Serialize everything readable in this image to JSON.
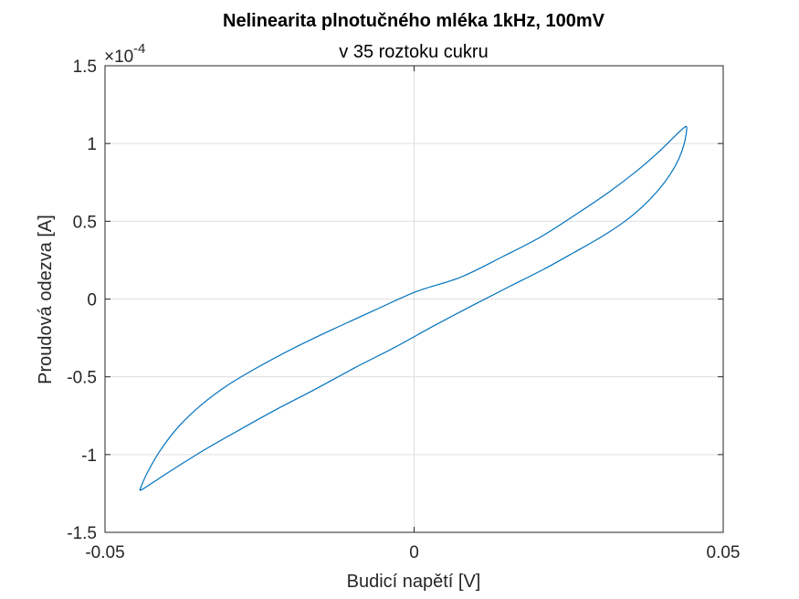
{
  "chart_data": {
    "type": "line",
    "title": "Nelinearita plnotučného mléka 1kHz, 100mV",
    "subtitle": "v 35 roztoku cukru",
    "xlabel": "Budicí napětí [V]",
    "ylabel": "Proudová odezva [A]",
    "xlim": [
      -0.05,
      0.05
    ],
    "ylim": [
      -1.5,
      1.5
    ],
    "y_exponent_label": "×10",
    "y_exponent_power": "-4",
    "y_scale_note": "y values in units of 1e-4 A",
    "x_ticks": [
      -0.05,
      0,
      0.05
    ],
    "x_tick_labels": [
      "-0.05",
      "0",
      "0.05"
    ],
    "y_ticks": [
      -1.5,
      -1,
      -0.5,
      0,
      0.5,
      1,
      1.5
    ],
    "y_tick_labels": [
      "-1.5",
      "-1",
      "-0.5",
      "0",
      "0.5",
      "1",
      "1.5"
    ],
    "grid": true,
    "line_color": "#0072BD",
    "series": [
      {
        "x": [
          -0.0444,
          -0.0438,
          -0.0415,
          -0.038,
          -0.0335,
          -0.0282,
          -0.0223,
          -0.016,
          -0.0095,
          -0.0031,
          0.0033,
          0.0095,
          0.0154,
          0.0209,
          0.0259,
          0.0303,
          0.0341,
          0.0371,
          0.0395,
          0.0414,
          0.0428,
          0.0437,
          0.0441,
          0.0436,
          0.042,
          0.0394,
          0.0359,
          0.0316,
          0.0264,
          0.0205,
          0.0142,
          0.0075,
          0.0005,
          -0.0063,
          -0.0129,
          -0.0192,
          -0.0249,
          -0.03,
          -0.0344,
          -0.0381,
          -0.041,
          -0.0432,
          -0.0444
        ],
        "y": [
          -1.23,
          -1.22,
          -1.16,
          -1.07,
          -0.96,
          -0.84,
          -0.71,
          -0.58,
          -0.44,
          -0.31,
          -0.17,
          -0.04,
          0.08,
          0.19,
          0.3,
          0.4,
          0.5,
          0.6,
          0.7,
          0.8,
          0.9,
          1.0,
          1.1,
          1.1,
          1.04,
          0.94,
          0.82,
          0.69,
          0.55,
          0.4,
          0.27,
          0.14,
          0.05,
          -0.07,
          -0.19,
          -0.31,
          -0.43,
          -0.55,
          -0.68,
          -0.82,
          -0.97,
          -1.12,
          -1.23
        ]
      }
    ]
  }
}
